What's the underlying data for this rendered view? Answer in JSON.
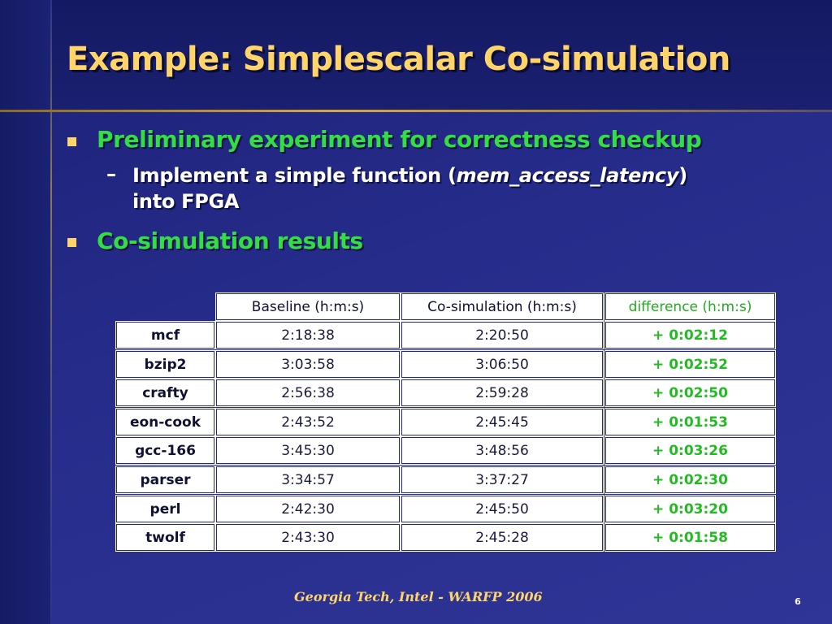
{
  "slide": {
    "title": "Example: Simplescalar Co-simulation",
    "bullet1": "Preliminary experiment for correctness checkup",
    "sub1_line1_a": "Implement a simple function (",
    "sub1_line1_b": "mem_access_latency",
    "sub1_line1_c": ")",
    "sub1_line2": "into FPGA",
    "bullet2": "Co-simulation results",
    "dash": "–"
  },
  "table": {
    "headers": [
      "Baseline (h:m:s)",
      "Co-simulation (h:m:s)",
      "difference (h:m:s)"
    ],
    "rows": [
      {
        "name": "mcf",
        "baseline": "2:18:38",
        "cosim": "2:20:50",
        "diff": "+ 0:02:12"
      },
      {
        "name": "bzip2",
        "baseline": "3:03:58",
        "cosim": "3:06:50",
        "diff": "+ 0:02:52"
      },
      {
        "name": "crafty",
        "baseline": "2:56:38",
        "cosim": "2:59:28",
        "diff": "+ 0:02:50"
      },
      {
        "name": "eon-cook",
        "baseline": "2:43:52",
        "cosim": "2:45:45",
        "diff": "+ 0:01:53"
      },
      {
        "name": "gcc-166",
        "baseline": "3:45:30",
        "cosim": "3:48:56",
        "diff": "+ 0:03:26"
      },
      {
        "name": "parser",
        "baseline": "3:34:57",
        "cosim": "3:37:27",
        "diff": "+ 0:02:30"
      },
      {
        "name": "perl",
        "baseline": "2:42:30",
        "cosim": "2:45:50",
        "diff": "+ 0:03:20"
      },
      {
        "name": "twolf",
        "baseline": "2:43:30",
        "cosim": "2:45:28",
        "diff": "+ 0:01:58"
      }
    ]
  },
  "footer": {
    "text": "Georgia Tech, Intel  - WARFP 2006",
    "page_number": "6"
  },
  "colors": {
    "title": "#ffd56a",
    "bullet_text": "#33dd44",
    "difference": "#22bb22",
    "background": "#262c8a"
  }
}
